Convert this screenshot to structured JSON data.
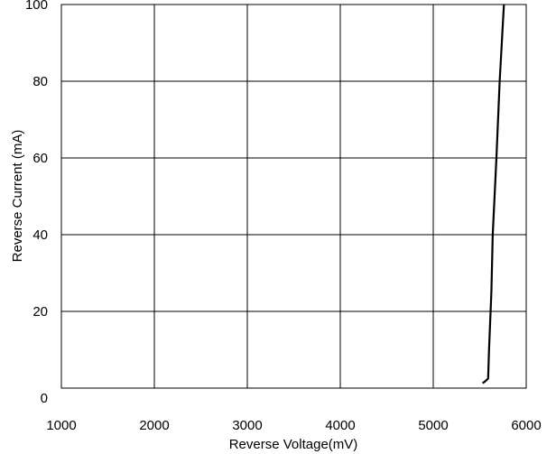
{
  "chart_data": {
    "type": "line",
    "title": "",
    "xlabel": "Reverse Voltage(mV)",
    "ylabel": "Reverse Current (mA)",
    "xlim": [
      1000,
      6000
    ],
    "ylim": [
      0,
      100
    ],
    "x_ticks": [
      1000,
      2000,
      3000,
      4000,
      5000,
      6000
    ],
    "y_ticks": [
      0,
      20,
      40,
      60,
      80,
      100
    ],
    "grid": true,
    "legend": "none",
    "series": [
      {
        "color": "#000000",
        "points": [
          [
            5530,
            1.3
          ],
          [
            5550,
            1.6
          ],
          [
            5590,
            2.5
          ],
          [
            5600,
            10
          ],
          [
            5625,
            25
          ],
          [
            5640,
            40
          ],
          [
            5680,
            60
          ],
          [
            5715,
            80
          ],
          [
            5760,
            100
          ]
        ]
      }
    ]
  }
}
